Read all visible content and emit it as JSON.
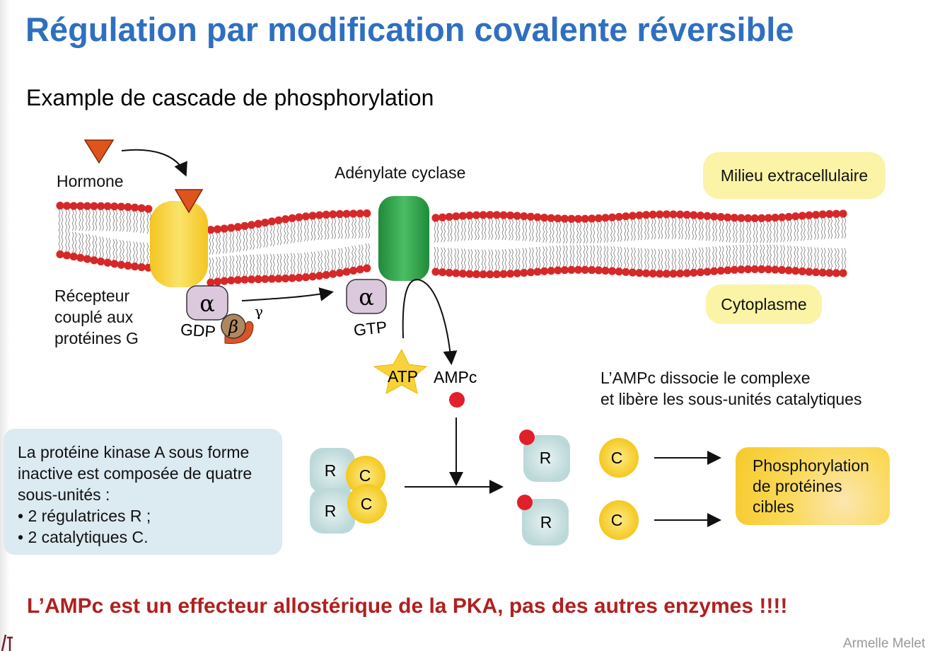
{
  "slide": {
    "title": "Régulation par modification covalente réversible",
    "subtitle": "Example de cascade de phosphorylation",
    "conclusion": "L’AMPc est un effecteur allostérique de la PKA, pas des autres enzymes !!!!",
    "author": "Armelle Melet"
  },
  "diagram": {
    "hormone": "Hormone",
    "adenylate_cyclase": "Adénylate cyclase",
    "extracellular": "Milieu extracellulaire",
    "cytoplasm": "Cytoplasme",
    "receptor": [
      "Récepteur",
      "couplé aux",
      "protéines G"
    ],
    "alpha": "α",
    "beta": "β",
    "gamma": "γ",
    "gdp": "GDP",
    "gtp": "GTP",
    "atp": "ATP",
    "ampc": "AMPc",
    "dissociation_note": [
      "L’AMPc dissocie le complexe",
      "et libère les sous-unités catalytiques"
    ],
    "pka_description": [
      "La protéine kinase A sous forme",
      "inactive est composée de quatre",
      "sous-unités :",
      "• 2 régulatrices R ;",
      "• 2 catalytiques C."
    ],
    "r": "R",
    "c": "C",
    "phosphorylation": [
      "Phosphorylation",
      "de protéines",
      "cibles"
    ],
    "colors": {
      "title": "#2f6fc0",
      "conclusion": "#b0201f",
      "receptor": "#f8d23a",
      "adenylate_cyclase": "#2e9e4a",
      "lipid_head": "#d62828",
      "hormone": "#e0541b",
      "alpha_subunit": "#dcc8dc",
      "beta_subunit": "#b08860",
      "gamma_subunit": "#d9542a",
      "r_subunit": "#c9e0e0",
      "c_subunit": "#f8d23a",
      "ampc_dot": "#e0202a"
    }
  }
}
